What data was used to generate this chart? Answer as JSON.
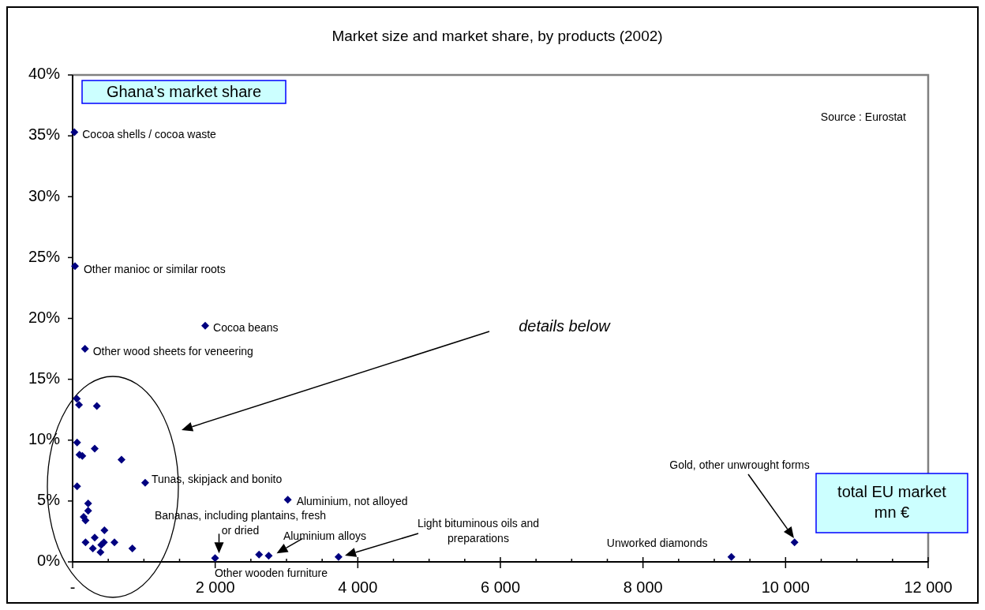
{
  "chart_data": {
    "type": "scatter",
    "title": "Market size and market share, by products (2002)",
    "xlabel": "total EU market\nmn €",
    "ylabel": "Ghana's market share",
    "x": [
      25,
      33,
      1860,
      174,
      1018,
      3018,
      1998,
      2615,
      2750,
      3730,
      9240,
      10126,
      59,
      89,
      340,
      63,
      310,
      96,
      136,
      686,
      63,
      218,
      218,
      155,
      181,
      446,
      181,
      310,
      284,
      391,
      402,
      439,
      587,
      838
    ],
    "series": [
      {
        "color": "#000080",
        "values": [
          35.3,
          24.3,
          19.4,
          17.5,
          6.5,
          5.1,
          0.3,
          0.6,
          0.5,
          0.4,
          0.4,
          1.6,
          13.4,
          12.9,
          12.8,
          9.8,
          9.3,
          8.8,
          8.7,
          8.4,
          6.2,
          4.8,
          4.2,
          3.7,
          3.4,
          2.6,
          1.6,
          2.0,
          1.1,
          0.8,
          1.4,
          1.6,
          1.6,
          1.1
        ]
      }
    ],
    "xlim": [
      0,
      12000
    ],
    "ylim": [
      0,
      40
    ],
    "xticks": [
      {
        "value": 0,
        "label": "-"
      },
      {
        "value": 500,
        "label": null
      },
      {
        "value": 1000,
        "label": null
      },
      {
        "value": 1500,
        "label": null
      },
      {
        "value": 2000,
        "label": "2 000"
      },
      {
        "value": 2500,
        "label": null
      },
      {
        "value": 3000,
        "label": null
      },
      {
        "value": 3500,
        "label": null
      },
      {
        "value": 4000,
        "label": "4 000"
      },
      {
        "value": 4500,
        "label": null
      },
      {
        "value": 5000,
        "label": null
      },
      {
        "value": 5500,
        "label": null
      },
      {
        "value": 6000,
        "label": "6 000"
      },
      {
        "value": 6500,
        "label": null
      },
      {
        "value": 7000,
        "label": null
      },
      {
        "value": 7500,
        "label": null
      },
      {
        "value": 8000,
        "label": "8 000"
      },
      {
        "value": 8500,
        "label": null
      },
      {
        "value": 9000,
        "label": null
      },
      {
        "value": 9500,
        "label": null
      },
      {
        "value": 10000,
        "label": "10 000"
      },
      {
        "value": 10500,
        "label": null
      },
      {
        "value": 11000,
        "label": null
      },
      {
        "value": 11500,
        "label": null
      },
      {
        "value": 12000,
        "label": "12 000"
      }
    ],
    "yticks": [
      {
        "value": 0,
        "label": "0%"
      },
      {
        "value": 5,
        "label": "5%"
      },
      {
        "value": 10,
        "label": "10%"
      },
      {
        "value": 15,
        "label": "15%"
      },
      {
        "value": 20,
        "label": "20%"
      },
      {
        "value": 25,
        "label": "25%"
      },
      {
        "value": 30,
        "label": "30%"
      },
      {
        "value": 35,
        "label": "35%"
      },
      {
        "value": 40,
        "label": "40%"
      }
    ],
    "marker": "diamond",
    "grid": false,
    "annotations": [
      {
        "text": "Cocoa shells / cocoa waste",
        "x": 25,
        "y": 35.3
      },
      {
        "text": "Other manioc or similar roots",
        "x": 33,
        "y": 24.3
      },
      {
        "text": "Cocoa beans",
        "x": 1860,
        "y": 19.4
      },
      {
        "text": "Other wood sheets for veneering",
        "x": 174,
        "y": 17.5
      },
      "details below",
      {
        "text": "Tunas, skipjack and bonito",
        "x": 1018,
        "y": 6.5
      },
      {
        "text": "Aluminium, not alloyed",
        "x": 3018,
        "y": 5.1
      },
      {
        "text": "Bananas, including plantains, fresh\nor dried",
        "x": 1998,
        "y": 0.3
      },
      {
        "text": "Other wooden furniture",
        "x": 1998,
        "y": 0.3
      },
      {
        "text": "Aluminium alloys",
        "x": 2750,
        "y": 0.5
      },
      "Light bituminous oils and\npreparations",
      {
        "text": "Unworked diamonds",
        "x": 9240,
        "y": 0.4
      },
      "Gold, other unwrought forms",
      "Source : Eurostat"
    ]
  }
}
